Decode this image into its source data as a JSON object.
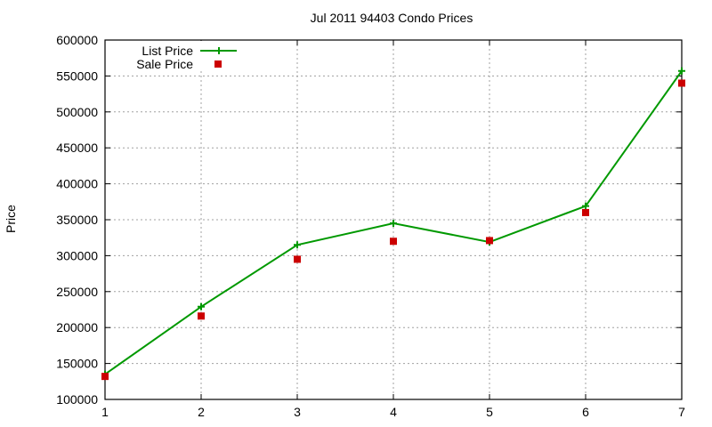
{
  "chart_data": {
    "type": "line",
    "title": "Jul 2011 94403 Condo Prices",
    "xlabel": "",
    "ylabel": "Price",
    "x": [
      1,
      2,
      3,
      4,
      5,
      6,
      7
    ],
    "xlim": [
      1,
      7
    ],
    "ylim": [
      100000,
      600000
    ],
    "x_ticks": [
      "1",
      "2",
      "3",
      "4",
      "5",
      "6",
      "7"
    ],
    "y_ticks": [
      "100000",
      "150000",
      "200000",
      "250000",
      "300000",
      "350000",
      "400000",
      "450000",
      "500000",
      "550000",
      "600000"
    ],
    "grid": true,
    "legend_position": "top-left",
    "series": [
      {
        "name": "List Price",
        "style": "linespoints",
        "marker": "plus",
        "color": "#009900",
        "values": [
          135000,
          229000,
          315000,
          345000,
          319000,
          369000,
          557000
        ]
      },
      {
        "name": "Sale Price",
        "style": "points",
        "marker": "square",
        "color": "#cc0000",
        "values": [
          132000,
          216000,
          295000,
          320000,
          321000,
          360000,
          540000
        ]
      }
    ]
  }
}
